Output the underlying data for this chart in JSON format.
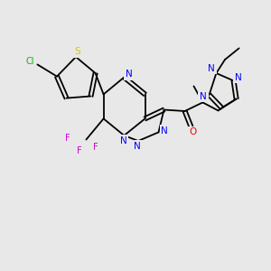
{
  "bg_color": "#e8e8e8",
  "bond_color": "#000000",
  "atom_colors": {
    "N": "#0000ff",
    "O": "#ff0000",
    "S": "#cccc00",
    "F": "#cc00cc",
    "Cl": "#00bb00",
    "C": "#000000"
  }
}
